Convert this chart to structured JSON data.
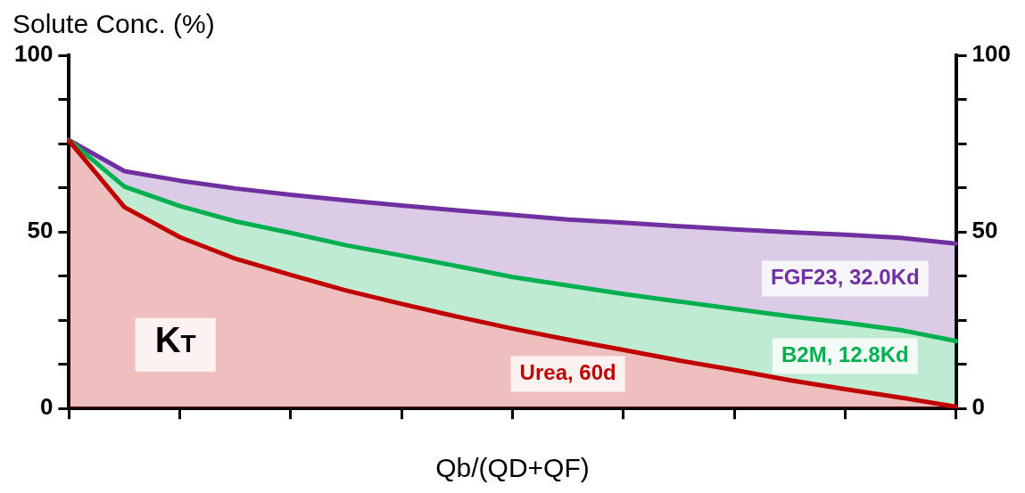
{
  "chart_data": {
    "type": "area",
    "xlabel": "Qb/(QD+QF)",
    "ylabel": "Solute Conc. (%)",
    "annotations": [
      "K$_{T}$"
    ],
    "categories": [
      null,
      null,
      null,
      null,
      null,
      null,
      null,
      null,
      null,
      null,
      null,
      null,
      null,
      null,
      null,
      null,
      null
    ],
    "series": [
      {
        "name": "Urea, 60d",
        "color": "#c00000",
        "values": [
          75.8,
          57,
          48.5,
          42.4,
          37.8,
          33.4,
          29.6,
          26,
          22.6,
          19.5,
          16.6,
          13.6,
          10.9,
          8,
          5.5,
          3.1,
          0.5
        ]
      },
      {
        "name": "B2M, 12.8Kd",
        "color": "#00b050",
        "values": [
          76,
          62.8,
          57.3,
          53,
          49.7,
          46.2,
          43.3,
          40.3,
          37.2,
          34.8,
          32.4,
          30.3,
          28.2,
          26.1,
          24.3,
          22.2,
          19.1
        ]
      },
      {
        "name": "FGF23, 32.0Kd",
        "color": "#7030a0",
        "values": [
          76,
          67.2,
          64.5,
          62.3,
          60.5,
          58.9,
          57.5,
          56.1,
          54.8,
          53.5,
          52.6,
          51.6,
          50.7,
          49.9,
          49.2,
          48.3,
          46.7
        ]
      }
    ],
    "ylim": [
      0,
      100
    ],
    "yticks": [
      0,
      {
        "value": 12.5,
        "label": null
      },
      {
        "value": 25,
        "label": null
      },
      {
        "value": 37.5,
        "label": null
      },
      50,
      {
        "value": 62.5,
        "label": null
      },
      {
        "value": 75,
        "label": null
      },
      {
        "value": 87.5,
        "label": null
      },
      100
    ],
    "y2lim": [
      0,
      100
    ],
    "y2ticks": [
      0,
      {
        "value": 12.5,
        "label": null
      },
      {
        "value": 25,
        "label": null
      },
      {
        "value": 37.5,
        "label": null
      },
      50,
      {
        "value": 62.5,
        "label": null
      },
      {
        "value": 75,
        "label": null
      },
      {
        "value": 87.5,
        "label": null
      },
      100
    ],
    "legend": false,
    "grid": false
  }
}
